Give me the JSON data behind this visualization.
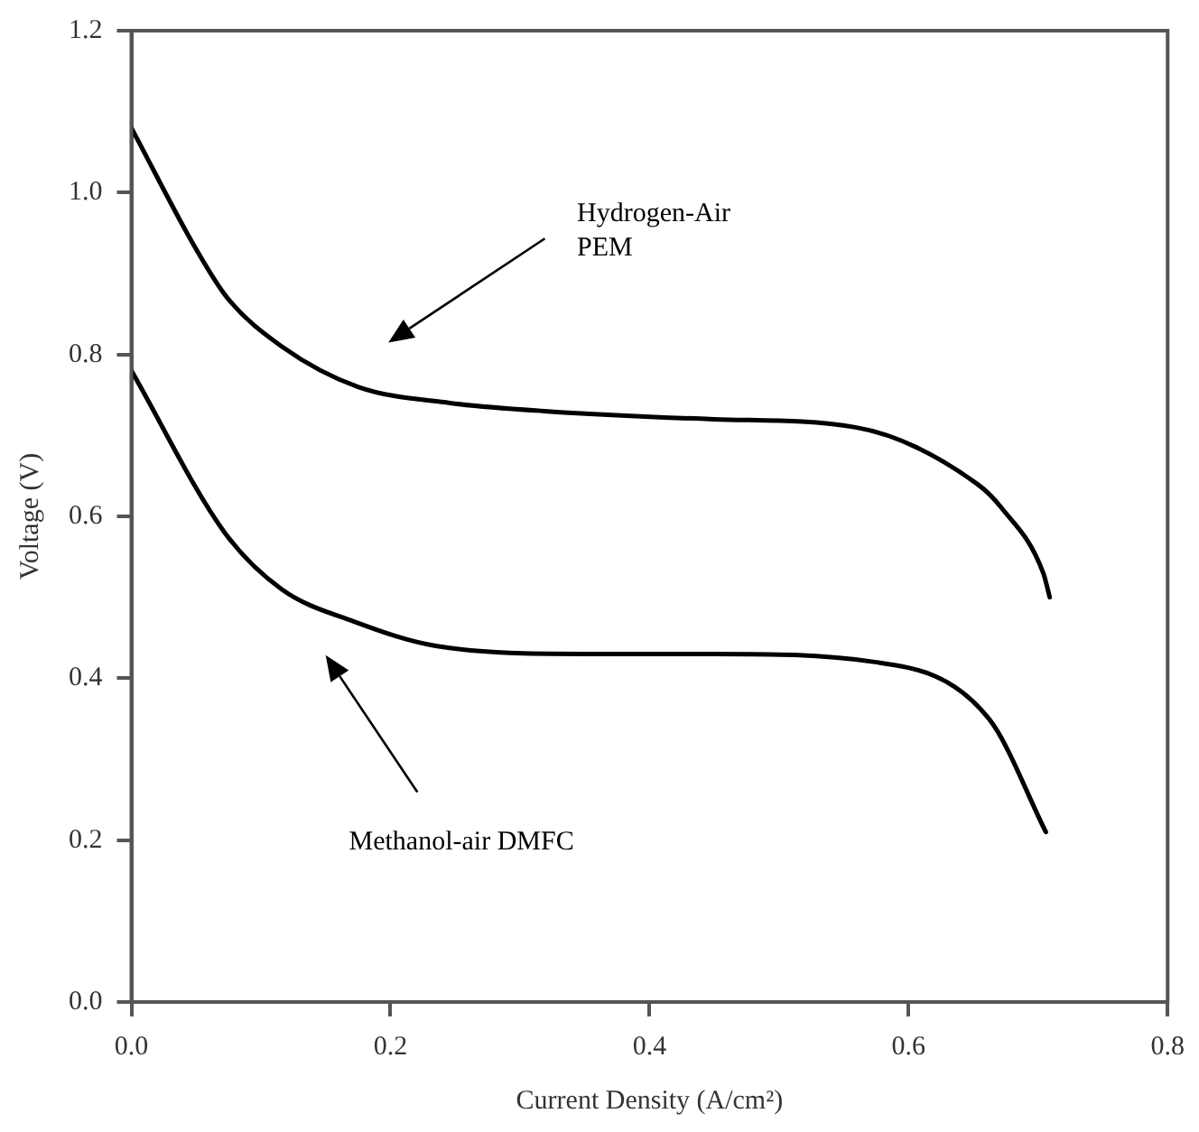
{
  "chart_data": {
    "type": "line",
    "xlabel": "Current Density (A/cm²)",
    "ylabel": "Voltage (V)",
    "xlim": [
      0,
      0.8
    ],
    "xticks": [
      {
        "value": 0,
        "label": "0.0"
      },
      0.2,
      0.4,
      0.6,
      0.8
    ],
    "ylim": [
      0,
      1.2
    ],
    "yticks": [
      {
        "value": 0,
        "label": "0.0"
      },
      0.2,
      0.4,
      0.6,
      0.8,
      {
        "value": 1,
        "label": "1.0"
      },
      1.2
    ],
    "grid": false,
    "legend": false,
    "marker": "none",
    "line_style": "solid",
    "series": [
      {
        "color": "#000000",
        "x": [
          0,
          0.05,
          0.074,
          0.116,
          0.175,
          0.246,
          0.319,
          0.45,
          0.559,
          0.653,
          0.672,
          0.704,
          0.709
        ],
        "values": [
          1.08,
          0.93,
          0.87,
          0.81,
          0.76,
          0.74,
          0.73,
          0.72,
          0.71,
          0.64,
          0.61,
          0.53,
          0.5
        ]
      },
      {
        "color": "#000000",
        "x": [
          0,
          0.072,
          0.116,
          0.172,
          0.235,
          0.349,
          0.45,
          0.574,
          0.662,
          0.706
        ],
        "values": [
          0.78,
          0.58,
          0.51,
          0.47,
          0.44,
          0.43,
          0.43,
          0.42,
          0.35,
          0.21
        ]
      }
    ],
    "annotations": [
      "Hydrogen-Air\nPEM",
      "Methanol-air DMFC"
    ]
  }
}
